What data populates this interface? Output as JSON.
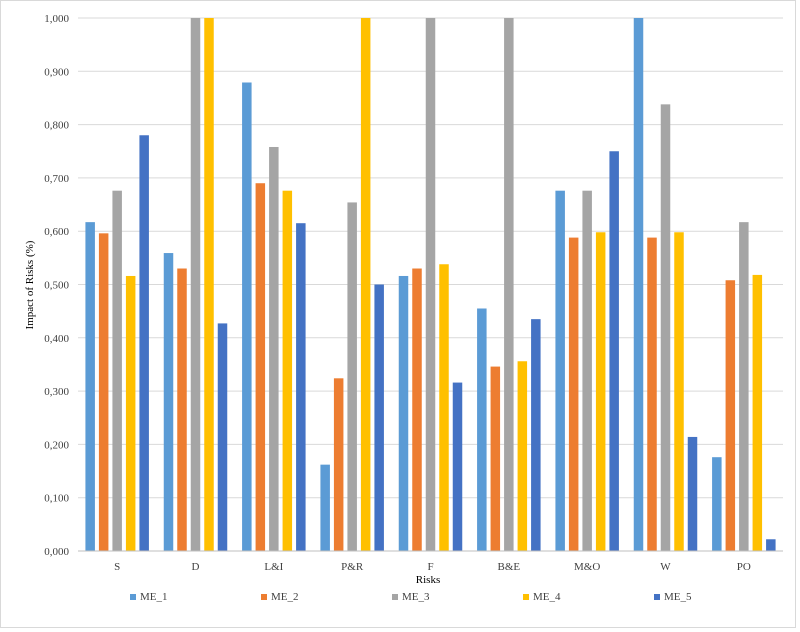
{
  "chart_data": {
    "type": "bar",
    "title": "",
    "xlabel": "Risks",
    "ylabel": "Impact of Risks (%)",
    "ylim": [
      0,
      1
    ],
    "yticks": [
      "0,000",
      "0,100",
      "0,200",
      "0,300",
      "0,400",
      "0,500",
      "0,600",
      "0,700",
      "0,800",
      "0,900",
      "1,000"
    ],
    "grid": true,
    "legend_position": "bottom",
    "categories": [
      "S",
      "D",
      "L&I",
      "P&R",
      "F",
      "B&E",
      "M&O",
      "W",
      "PO"
    ],
    "series": [
      {
        "name": "ME_1",
        "color": "#5B9BD5",
        "values": [
          0.617,
          0.559,
          0.879,
          0.162,
          0.516,
          0.455,
          0.676,
          1.0,
          0.176
        ]
      },
      {
        "name": "ME_2",
        "color": "#ED7D31",
        "values": [
          0.596,
          0.53,
          0.69,
          0.324,
          0.53,
          0.346,
          0.588,
          0.588,
          0.508
        ]
      },
      {
        "name": "ME_3",
        "color": "#A5A5A5",
        "values": [
          0.676,
          1.0,
          0.758,
          0.654,
          1.0,
          1.0,
          0.676,
          0.838,
          0.617
        ]
      },
      {
        "name": "ME_4",
        "color": "#FFC000",
        "values": [
          0.516,
          1.0,
          0.676,
          1.0,
          0.538,
          0.356,
          0.598,
          0.598,
          0.518
        ]
      },
      {
        "name": "ME_5",
        "color": "#4472C4",
        "values": [
          0.78,
          0.427,
          0.615,
          0.5,
          0.316,
          0.435,
          0.75,
          0.214,
          0.022
        ]
      }
    ]
  }
}
